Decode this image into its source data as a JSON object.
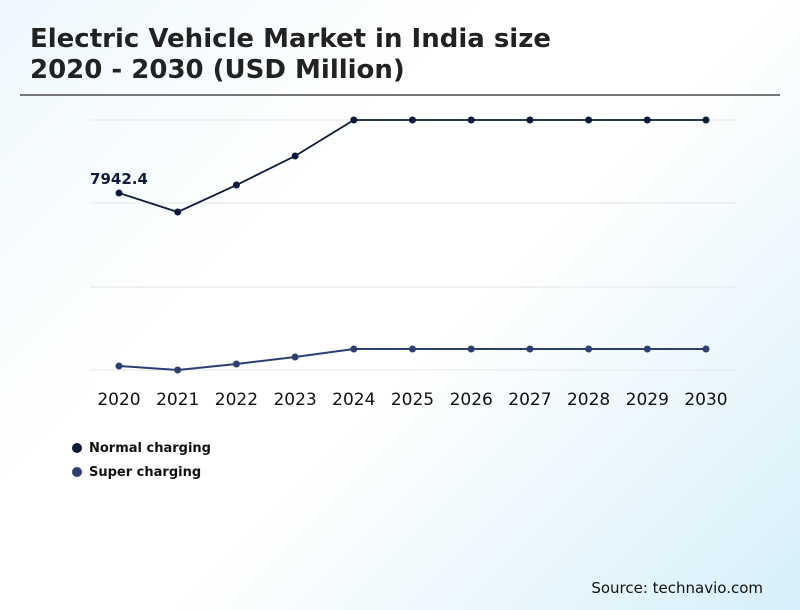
{
  "title_line1": "Electric Vehicle Market in India size",
  "title_line2": "2020 - 2030 (USD Million)",
  "source": "Source: technavio.com",
  "chart_data": {
    "type": "line",
    "categories": [
      "2020",
      "2021",
      "2022",
      "2023",
      "2024",
      "2025",
      "2026",
      "2027",
      "2028",
      "2029",
      "2030"
    ],
    "ylim": [
      0,
      11218
    ],
    "grid": true,
    "legend_placement": "bottom-left",
    "series": [
      {
        "name": "Normal charging",
        "color": "#0d1b3e",
        "values": [
          7942.4,
          7090,
          8301,
          9602,
          11218,
          11218,
          11218,
          11218,
          11218,
          11218,
          11218
        ]
      },
      {
        "name": "Super charging",
        "color": "#2b3f75",
        "values": [
          180,
          0,
          270,
          583,
          942,
          942,
          942,
          942,
          942,
          942,
          942
        ]
      }
    ],
    "annotations": [
      {
        "series": 0,
        "category": "2020",
        "text": "7942.4"
      }
    ]
  }
}
